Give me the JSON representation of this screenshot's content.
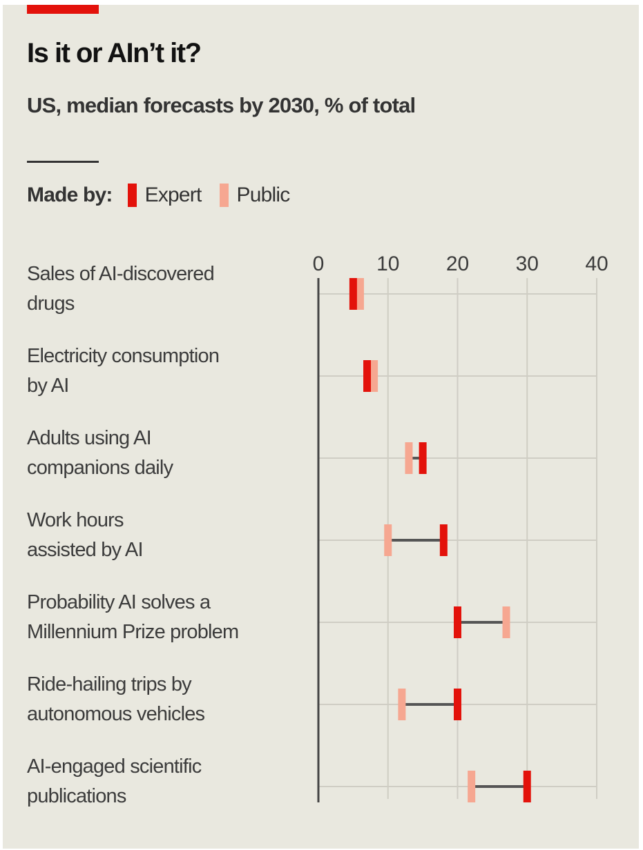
{
  "chart_data": {
    "type": "dumbbell",
    "title": "Is it or AIn’t it?",
    "subtitle": "US, median forecasts by 2030, % of total",
    "legend": {
      "label": "Made by:",
      "position": "top-left",
      "entries": [
        {
          "name": "Expert",
          "color": "#e3120b"
        },
        {
          "name": "Public",
          "color": "#f6a791"
        }
      ]
    },
    "xlabel": "",
    "ylabel": "",
    "xlim": [
      0,
      40
    ],
    "xticks": [
      "0",
      "10",
      "20",
      "30",
      "40"
    ],
    "xtick_values": [
      0,
      10,
      20,
      30,
      40
    ],
    "grid": true,
    "categories": [
      "Sales of AI-discovered drugs",
      "Electricity consumption by AI",
      "Adults using AI companions daily",
      "Work hours assisted by AI",
      "Probability AI solves a Millennium Prize problem",
      "Ride-hailing trips by autonomous vehicles",
      "AI-engaged scientific publications"
    ],
    "category_lines": [
      [
        "Sales of AI-discovered",
        "drugs"
      ],
      [
        "Electricity consumption",
        "by AI"
      ],
      [
        "Adults using AI",
        "companions daily"
      ],
      [
        "Work hours",
        "assisted by AI"
      ],
      [
        "Probability AI solves a",
        "Millennium Prize problem"
      ],
      [
        "Ride-hailing trips by",
        "autonomous vehicles"
      ],
      [
        "AI-engaged scientific",
        "publications"
      ]
    ],
    "series": [
      {
        "name": "Expert",
        "color": "#e3120b",
        "values": [
          5,
          7,
          15,
          18,
          20,
          20,
          30
        ]
      },
      {
        "name": "Public",
        "color": "#f6a791",
        "values": [
          6,
          8,
          13,
          10,
          27,
          12,
          22
        ]
      }
    ]
  }
}
